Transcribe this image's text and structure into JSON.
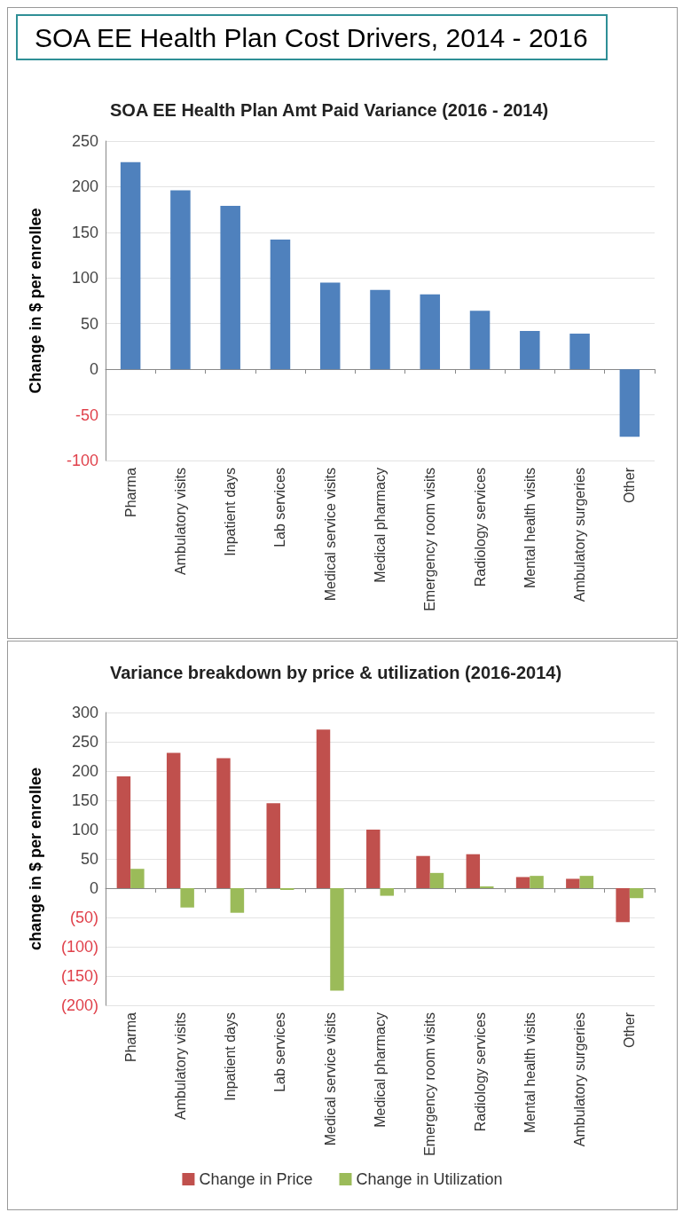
{
  "chart_data": [
    {
      "type": "bar",
      "title": "SOA EE Health Plan Cost Drivers, 2014 - 2016",
      "subtitle": "SOA EE Health Plan Amt Paid Variance (2016 - 2014)",
      "ylabel": "Change in $ per enrollee",
      "categories": [
        "Pharma",
        "Ambulatory visits",
        "Inpatient days",
        "Lab services",
        "Medical service visits",
        "Medical pharmacy",
        "Emergency room visits",
        "Radiology services",
        "Mental health visits",
        "Ambulatory surgeries",
        "Other"
      ],
      "series": [
        {
          "color": "#4f81bd",
          "values": [
            227,
            196,
            179,
            142,
            95,
            87,
            82,
            64,
            42,
            39,
            -74
          ]
        }
      ],
      "ylim": [
        -100,
        250
      ],
      "yticks": [
        -100,
        -50,
        0,
        50,
        100,
        150,
        200,
        250
      ],
      "grid": "y",
      "legend": false
    },
    {
      "type": "bar",
      "title": "Variance breakdown by price & utilization (2016-2014)",
      "ylabel": "change in $ per enrollee",
      "categories": [
        "Pharma",
        "Ambulatory visits",
        "Inpatient days",
        "Lab services",
        "Medical service visits",
        "Medical pharmacy",
        "Emergency room visits",
        "Radiology services",
        "Mental health visits",
        "Ambulatory surgeries",
        "Other"
      ],
      "series": [
        {
          "name": "Change in Price",
          "color": "#c0504d",
          "values": [
            191,
            231,
            222,
            145,
            271,
            100,
            55,
            58,
            19,
            16,
            -58
          ]
        },
        {
          "name": "Change in Utilization",
          "color": "#9bbb59",
          "values": [
            33,
            -33,
            -42,
            -3,
            -175,
            -13,
            26,
            3,
            21,
            21,
            -17
          ]
        }
      ],
      "ylim": [
        -200,
        300
      ],
      "yticks": [
        {
          "value": -200,
          "label": "(200)"
        },
        {
          "value": -150,
          "label": "(150)"
        },
        {
          "value": -100,
          "label": "(100)"
        },
        {
          "value": -50,
          "label": "(50)"
        },
        0,
        50,
        100,
        150,
        200,
        250,
        300
      ],
      "grid": "y",
      "legend": "bottom"
    }
  ]
}
